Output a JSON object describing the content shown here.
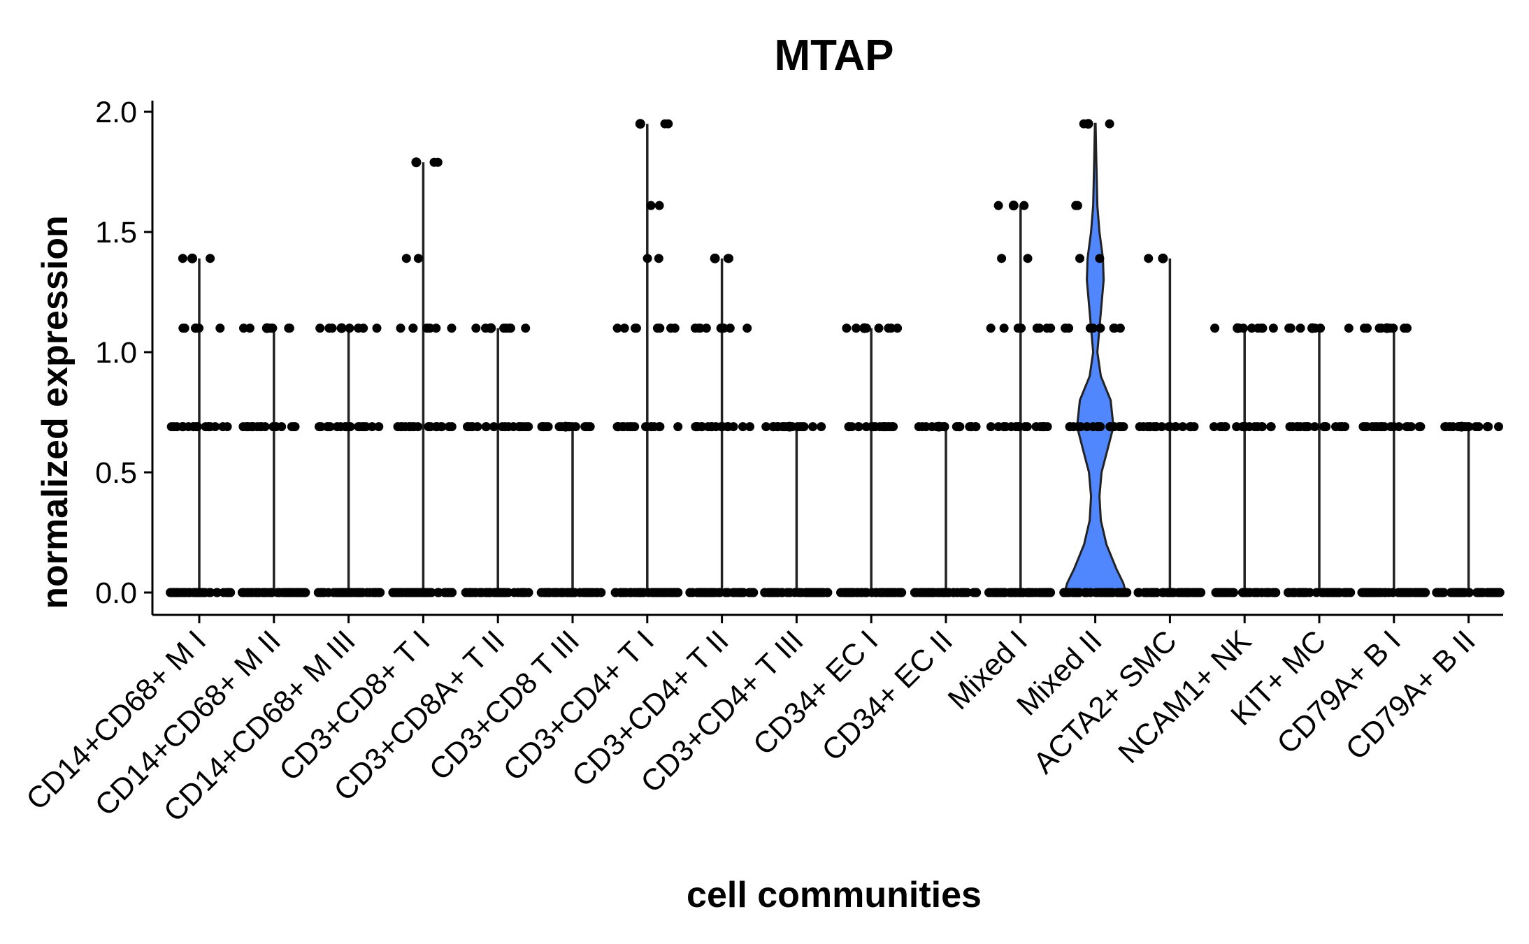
{
  "chart_data": {
    "type": "violin",
    "title": "MTAP",
    "xlabel": "cell communities",
    "ylabel": "normalized expression",
    "ylim": [
      -0.1,
      2.03
    ],
    "yticks": [
      0.0,
      0.5,
      1.0,
      1.5,
      2.0
    ],
    "ytick_labels": [
      "0.0",
      "0.5",
      "1.0",
      "1.5",
      "2.0"
    ],
    "grid": false,
    "legend": "none",
    "colors": {
      "violin_fill": "#5087FF",
      "points": "#000000",
      "outline": "#222222",
      "axes": "#000000"
    },
    "categories": [
      "CD14+CD68+ M I",
      "CD14+CD68+ M II",
      "CD14+CD68+ M III",
      "CD3+CD8+ T I",
      "CD3+CD8A+ T II",
      "CD3+CD8 T III",
      "CD3+CD4+ T I",
      "CD3+CD4+ T II",
      "CD3+CD4+ T III",
      "CD34+ EC I",
      "CD34+ EC II",
      "Mixed I",
      "Mixed II",
      "ACTA2+ SMC",
      "NCAM1+ NK",
      "KIT+ MC",
      "CD79A+ B I",
      "CD79A+ B II"
    ],
    "max_values": [
      1.39,
      1.1,
      1.1,
      1.79,
      1.1,
      0.69,
      1.95,
      1.39,
      0.69,
      1.1,
      0.69,
      1.61,
      1.95,
      1.39,
      1.1,
      1.1,
      1.1,
      0.69
    ],
    "expression_levels": [
      [
        0.0,
        0.69,
        1.1,
        1.39
      ],
      [
        0.0,
        0.69,
        1.1
      ],
      [
        0.0,
        0.69,
        1.1
      ],
      [
        0.0,
        0.69,
        1.1,
        1.39,
        1.79
      ],
      [
        0.0,
        0.69,
        1.1
      ],
      [
        0.0,
        0.69
      ],
      [
        0.0,
        0.69,
        1.1,
        1.39,
        1.61,
        1.95
      ],
      [
        0.0,
        0.69,
        1.1,
        1.39
      ],
      [
        0.0,
        0.69
      ],
      [
        0.0,
        0.69,
        1.1
      ],
      [
        0.0,
        0.69
      ],
      [
        0.0,
        0.69,
        1.1,
        1.39,
        1.61
      ],
      [
        0.0,
        0.69,
        1.1,
        1.39,
        1.61,
        1.95
      ],
      [
        0.0,
        0.69,
        1.39
      ],
      [
        0.0,
        0.69,
        1.1
      ],
      [
        0.0,
        0.69,
        1.1
      ],
      [
        0.0,
        0.69,
        1.1
      ],
      [
        0.0,
        0.69
      ]
    ],
    "highlighted_violin": "Mixed II"
  }
}
